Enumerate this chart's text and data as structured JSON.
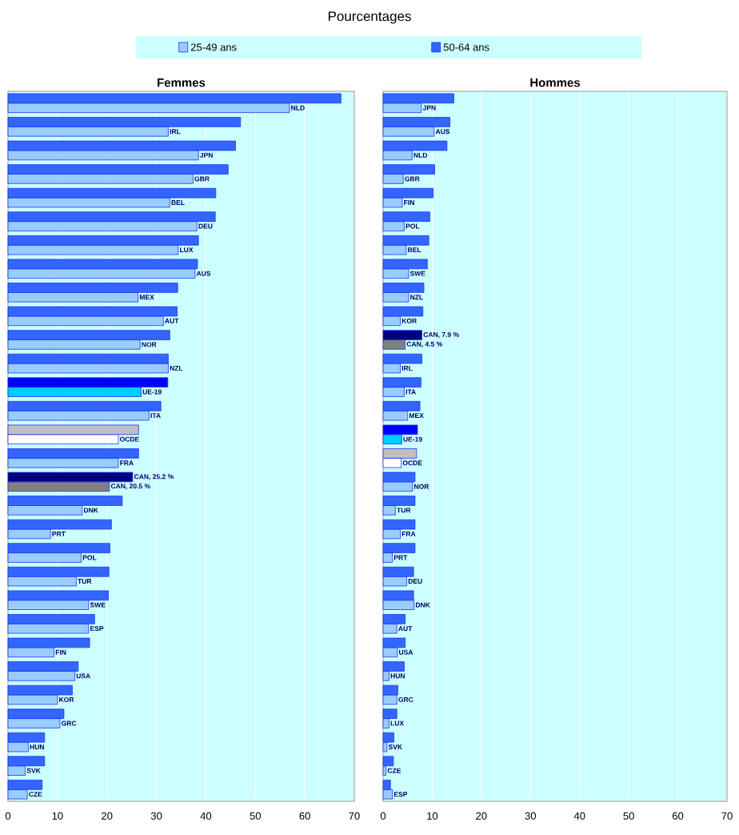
{
  "chart_data": [
    {
      "type": "bar",
      "orientation": "horizontal",
      "title": "Femmes",
      "annotations": [
        "Pourcentages"
      ],
      "legend": "top",
      "grid": "x",
      "categories": [
        "NLD",
        "IRL",
        "JPN",
        "GBR",
        "BEL",
        "DEU",
        "LUX",
        "AUS",
        "MEX",
        "AUT",
        "NOR",
        "NZL",
        "UE-19",
        "ITA",
        "OCDE",
        "FRA",
        null,
        "DNK",
        "PRT",
        "POL",
        "TUR",
        "SWE",
        "ESP",
        "FIN",
        "USA",
        "KOR",
        "GRC",
        "HUN",
        "SVK",
        "CZE"
      ],
      "series": [
        {
          "name": "25-49 ans",
          "color": "#99ccff",
          "colors": [
            "#99ccff",
            "#99ccff",
            "#99ccff",
            "#99ccff",
            "#99ccff",
            "#99ccff",
            "#99ccff",
            "#99ccff",
            "#99ccff",
            "#99ccff",
            "#99ccff",
            "#99ccff",
            "#00ccff",
            "#99ccff",
            "#ffffff",
            "#99ccff",
            "#808080",
            "#99ccff",
            "#99ccff",
            "#99ccff",
            "#99ccff",
            "#99ccff",
            "#99ccff",
            "#99ccff",
            "#99ccff",
            "#99ccff",
            "#99ccff",
            "#99ccff",
            "#99ccff",
            "#99ccff"
          ],
          "values": [
            56.9,
            32.4,
            38.5,
            37.4,
            32.7,
            38.2,
            34.4,
            37.8,
            26.3,
            31.4,
            26.7,
            32.4,
            26.9,
            28.5,
            22.3,
            22.3,
            20.5,
            15.0,
            8.6,
            14.8,
            13.8,
            16.3,
            16.3,
            9.3,
            13.5,
            10.0,
            10.5,
            4.1,
            3.5,
            3.9
          ],
          "value_labels": [
            null,
            null,
            null,
            null,
            null,
            null,
            null,
            null,
            null,
            null,
            null,
            null,
            null,
            null,
            null,
            null,
            "CAN, 20.5 %",
            null,
            null,
            null,
            null,
            null,
            null,
            null,
            null,
            null,
            null,
            null,
            null,
            null
          ]
        },
        {
          "name": "50-64 ans",
          "color": "#3366ff",
          "colors": [
            "#3366ff",
            "#3366ff",
            "#3366ff",
            "#3366ff",
            "#3366ff",
            "#3366ff",
            "#3366ff",
            "#3366ff",
            "#3366ff",
            "#3366ff",
            "#3366ff",
            "#3366ff",
            "#0000ff",
            "#3366ff",
            "#c0c0c0",
            "#3366ff",
            "#000080",
            "#3366ff",
            "#3366ff",
            "#3366ff",
            "#3366ff",
            "#3366ff",
            "#3366ff",
            "#3366ff",
            "#3366ff",
            "#3366ff",
            "#3366ff",
            "#3366ff",
            "#3366ff",
            "#3366ff"
          ],
          "values": [
            67.3,
            47.0,
            46.0,
            44.5,
            42.0,
            41.9,
            38.5,
            38.3,
            34.3,
            34.2,
            32.7,
            32.4,
            32.3,
            30.9,
            26.4,
            26.4,
            25.2,
            23.1,
            20.9,
            20.6,
            20.4,
            20.3,
            17.5,
            16.5,
            14.2,
            13.0,
            11.3,
            7.4,
            7.4,
            6.9
          ],
          "value_labels": [
            null,
            null,
            null,
            null,
            null,
            null,
            null,
            null,
            null,
            null,
            null,
            null,
            null,
            null,
            null,
            null,
            "CAN, 25.2 %",
            null,
            null,
            null,
            null,
            null,
            null,
            null,
            null,
            null,
            null,
            null,
            null,
            null
          ]
        }
      ],
      "xlim": [
        0,
        70
      ],
      "xticks": [
        0,
        10,
        20,
        30,
        40,
        50,
        60,
        70
      ]
    },
    {
      "type": "bar",
      "orientation": "horizontal",
      "title": "Hommes",
      "grid": "x",
      "categories": [
        "JPN",
        "AUS",
        "NLD",
        "GBR",
        "FIN",
        "POL",
        "BEL",
        "SWE",
        "NZL",
        "KOR",
        null,
        "IRL",
        "ITA",
        "MEX",
        "UE-19",
        "OCDE",
        "NOR",
        "TUR",
        "FRA",
        "PRT",
        "DEU",
        "DNK",
        "AUT",
        "USA",
        "HUN",
        "GRC",
        "LUX",
        "SVK",
        "CZE",
        "ESP"
      ],
      "series": [
        {
          "color": "#99ccff",
          "colors": [
            "#99ccff",
            "#99ccff",
            "#99ccff",
            "#99ccff",
            "#99ccff",
            "#99ccff",
            "#99ccff",
            "#99ccff",
            "#99ccff",
            "#99ccff",
            "#808080",
            "#99ccff",
            "#99ccff",
            "#99ccff",
            "#00ccff",
            "#ffffff",
            "#99ccff",
            "#99ccff",
            "#99ccff",
            "#99ccff",
            "#99ccff",
            "#99ccff",
            "#99ccff",
            "#99ccff",
            "#99ccff",
            "#99ccff",
            "#99ccff",
            "#99ccff",
            "#99ccff",
            "#99ccff"
          ],
          "values": [
            7.8,
            10.4,
            5.9,
            4.1,
            3.9,
            4.3,
            4.7,
            5.2,
            5.2,
            3.5,
            4.5,
            3.5,
            4.3,
            5.0,
            3.8,
            3.7,
            6.0,
            2.5,
            3.5,
            1.9,
            4.8,
            6.3,
            2.8,
            2.9,
            1.2,
            2.8,
            1.2,
            0.8,
            0.6,
            1.9
          ],
          "value_labels": [
            null,
            null,
            null,
            null,
            null,
            null,
            null,
            null,
            null,
            null,
            "CAN, 4.5 %",
            null,
            null,
            null,
            null,
            null,
            null,
            null,
            null,
            null,
            null,
            null,
            null,
            null,
            null,
            null,
            null,
            null,
            null,
            null
          ]
        },
        {
          "color": "#3366ff",
          "colors": [
            "#3366ff",
            "#3366ff",
            "#3366ff",
            "#3366ff",
            "#3366ff",
            "#3366ff",
            "#3366ff",
            "#3366ff",
            "#3366ff",
            "#3366ff",
            "#000080",
            "#3366ff",
            "#3366ff",
            "#3366ff",
            "#0000ff",
            "#c0c0c0",
            "#3366ff",
            "#3366ff",
            "#3366ff",
            "#3366ff",
            "#3366ff",
            "#3366ff",
            "#3366ff",
            "#3366ff",
            "#3366ff",
            "#3366ff",
            "#3366ff",
            "#3366ff",
            "#3366ff",
            "#3366ff"
          ],
          "values": [
            14.4,
            13.6,
            13.0,
            10.5,
            10.2,
            9.5,
            9.3,
            9.0,
            8.3,
            8.1,
            7.9,
            7.9,
            7.7,
            7.5,
            7.0,
            6.8,
            6.5,
            6.5,
            6.5,
            6.5,
            6.2,
            6.2,
            4.5,
            4.5,
            4.3,
            3.0,
            2.8,
            2.2,
            2.1,
            1.5
          ],
          "value_labels": [
            null,
            null,
            null,
            null,
            null,
            null,
            null,
            null,
            null,
            null,
            "CAN, 7.9 %",
            null,
            null,
            null,
            null,
            null,
            null,
            null,
            null,
            null,
            null,
            null,
            null,
            null,
            null,
            null,
            null,
            null,
            null,
            null
          ]
        }
      ],
      "xlim": [
        0,
        70
      ],
      "xticks": [
        0,
        10,
        20,
        30,
        40,
        50,
        60,
        70
      ]
    }
  ]
}
